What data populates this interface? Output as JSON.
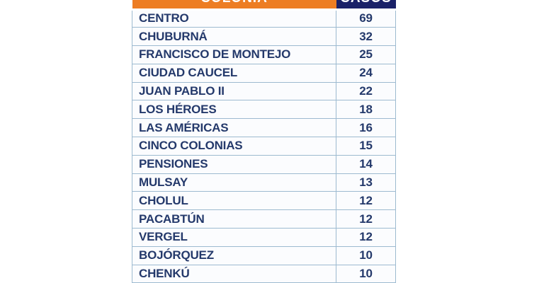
{
  "table": {
    "header": {
      "colonia_label": "COLONIA",
      "casos_label": "CASOS"
    },
    "rows": [
      {
        "colonia": "CENTRO",
        "casos": "69"
      },
      {
        "colonia": "CHUBURNÁ",
        "casos": "32"
      },
      {
        "colonia": "FRANCISCO DE MONTEJO",
        "casos": "25"
      },
      {
        "colonia": "CIUDAD CAUCEL",
        "casos": "24"
      },
      {
        "colonia": "JUAN PABLO II",
        "casos": "22"
      },
      {
        "colonia": "LOS HÉROES",
        "casos": "18"
      },
      {
        "colonia": "LAS AMÉRICAS",
        "casos": "16"
      },
      {
        "colonia": "CINCO COLONIAS",
        "casos": "15"
      },
      {
        "colonia": "PENSIONES",
        "casos": "14"
      },
      {
        "colonia": "MULSAY",
        "casos": "13"
      },
      {
        "colonia": "CHOLUL",
        "casos": "12"
      },
      {
        "colonia": "PACABTÚN",
        "casos": "12"
      },
      {
        "colonia": "VERGEL",
        "casos": "12"
      },
      {
        "colonia": "BOJÓRQUEZ",
        "casos": "10"
      },
      {
        "colonia": "CHENKÚ",
        "casos": "10"
      }
    ]
  },
  "colors": {
    "header_colonia_bg": "#ED7D23",
    "header_casos_bg": "#1A2168",
    "header_text": "#FFFFFF",
    "row_text": "#24396B",
    "row_bg": "#FBFCFE",
    "border": "#9DBAD0",
    "page_bg": "#FFFFFF"
  },
  "chart_data": {
    "type": "table",
    "title": "",
    "columns": [
      "COLONIA",
      "CASOS"
    ],
    "rows": [
      [
        "CENTRO",
        69
      ],
      [
        "CHUBURNÁ",
        32
      ],
      [
        "FRANCISCO DE MONTEJO",
        25
      ],
      [
        "CIUDAD CAUCEL",
        24
      ],
      [
        "JUAN PABLO II",
        22
      ],
      [
        "LOS HÉROES",
        18
      ],
      [
        "LAS AMÉRICAS",
        16
      ],
      [
        "CINCO COLONIAS",
        15
      ],
      [
        "PENSIONES",
        14
      ],
      [
        "MULSAY",
        13
      ],
      [
        "CHOLUL",
        12
      ],
      [
        "PACABTÚN",
        12
      ],
      [
        "VERGEL",
        12
      ],
      [
        "BOJÓRQUEZ",
        10
      ],
      [
        "CHENKÚ",
        10
      ]
    ],
    "notes": "Header row partially cropped at top edge of screenshot; table of case counts per colonia sorted descending."
  }
}
